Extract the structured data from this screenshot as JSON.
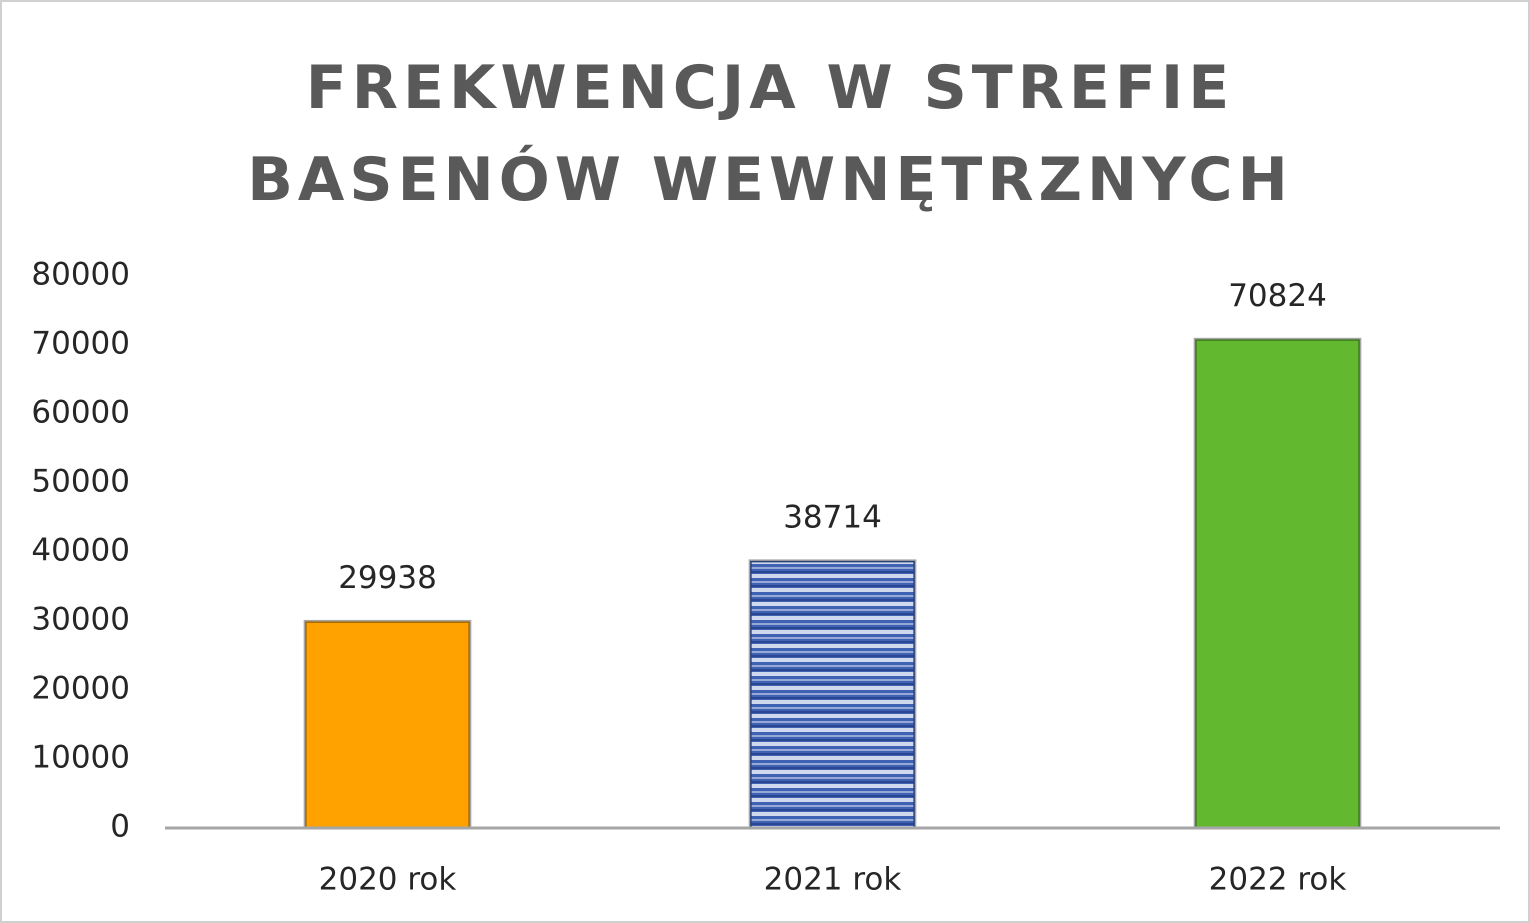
{
  "chart_data": {
    "type": "bar",
    "title": "FREKWENCJA W STREFIE BASENÓW WEWNĘTRZNYCH",
    "categories": [
      "2020 rok",
      "2021 rok",
      "2022 rok"
    ],
    "values": [
      29938,
      38714,
      70824
    ],
    "colors": [
      "#ffa200",
      "#3f62b5",
      "#62b82e"
    ],
    "patterns": [
      null,
      "stripes",
      null
    ],
    "ylim": [
      0,
      80000
    ],
    "yticks": [
      0,
      10000,
      20000,
      30000,
      40000,
      50000,
      60000,
      70000,
      80000
    ],
    "grid": false
  }
}
